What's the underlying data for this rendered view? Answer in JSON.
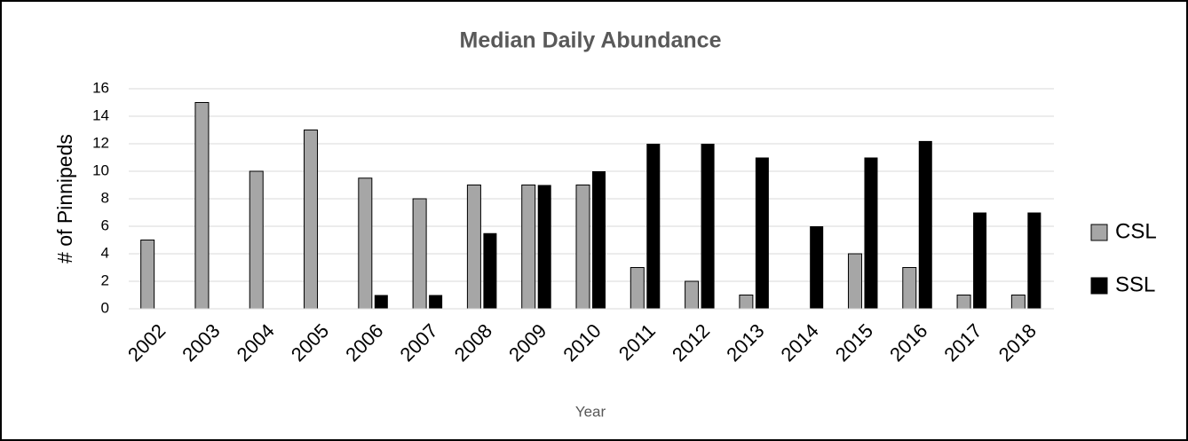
{
  "chart_data": {
    "type": "bar",
    "title": "Median Daily Abundance",
    "x_label": "Year",
    "y_label": "# of Pinnipeds",
    "categories": [
      "2002",
      "2003",
      "2004",
      "2005",
      "2006",
      "2007",
      "2008",
      "2009",
      "2010",
      "2011",
      "2012",
      "2013",
      "2014",
      "2015",
      "2016",
      "2017",
      "2018"
    ],
    "series": [
      {
        "name": "CSL",
        "color": "#a6a6a6",
        "values": [
          5,
          15,
          10,
          13,
          9.5,
          8,
          9,
          9,
          9,
          3,
          2,
          1,
          0,
          4,
          3,
          1,
          1
        ]
      },
      {
        "name": "SSL",
        "color": "#000000",
        "values": [
          0,
          0,
          0,
          0,
          1,
          1,
          5.5,
          9,
          10,
          12,
          12,
          11,
          6,
          11,
          12.2,
          7,
          7
        ]
      }
    ],
    "ylim": [
      0,
      16
    ],
    "yticks": [
      0,
      2,
      4,
      6,
      8,
      10,
      12,
      14,
      16
    ],
    "grid": true,
    "legend": "right"
  }
}
